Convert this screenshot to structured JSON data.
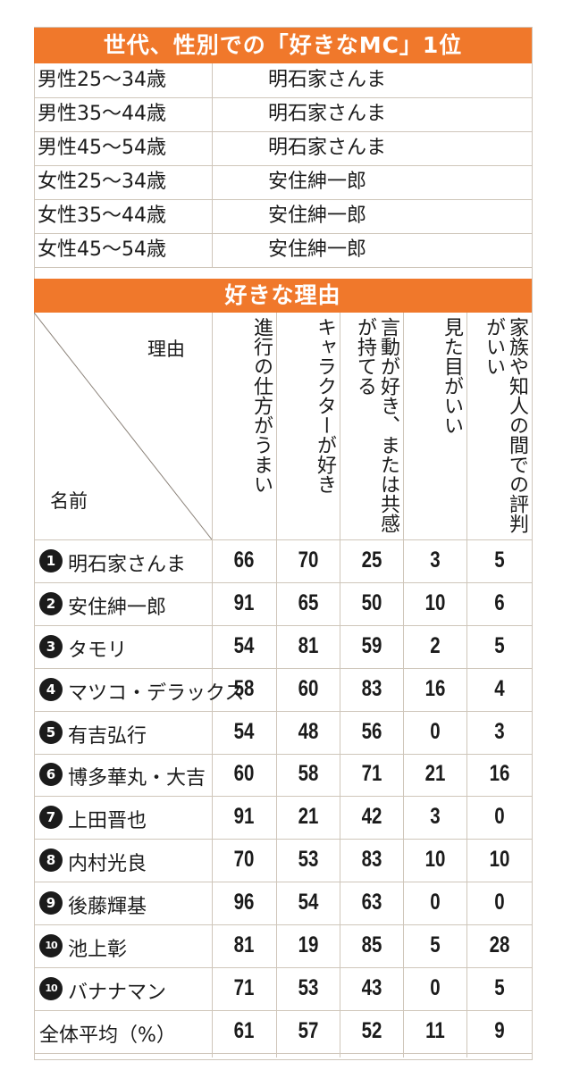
{
  "top_table": {
    "title": "世代、性別での「好きなMC」1位",
    "rows": [
      {
        "group": "男性25～34歳",
        "name": "明石家さんま"
      },
      {
        "group": "男性35～44歳",
        "name": "明石家さんま"
      },
      {
        "group": "男性45～54歳",
        "name": "明石家さんま"
      },
      {
        "group": "女性25～34歳",
        "name": "安住紳一郎"
      },
      {
        "group": "女性35～44歳",
        "name": "安住紳一郎"
      },
      {
        "group": "女性45～54歳",
        "name": "安住紳一郎"
      }
    ]
  },
  "reasons_table": {
    "title": "好きな理由",
    "corner_top": "理由",
    "corner_bottom": "名前",
    "columns": [
      "進行の仕方がうまい",
      "キャラクターが好き",
      "言動が好き、または共感が持てる",
      "見た目がいい",
      "家族や知人の間での評判がいい"
    ],
    "rows": [
      {
        "rank": "1",
        "name": "明石家さんま",
        "values": [
          "66",
          "70",
          "25",
          "3",
          "5"
        ]
      },
      {
        "rank": "2",
        "name": "安住紳一郎",
        "values": [
          "91",
          "65",
          "50",
          "10",
          "6"
        ]
      },
      {
        "rank": "3",
        "name": "タモリ",
        "values": [
          "54",
          "81",
          "59",
          "2",
          "5"
        ]
      },
      {
        "rank": "4",
        "name": "マツコ・デラックス",
        "values": [
          "58",
          "60",
          "83",
          "16",
          "4"
        ]
      },
      {
        "rank": "5",
        "name": "有吉弘行",
        "values": [
          "54",
          "48",
          "56",
          "0",
          "3"
        ]
      },
      {
        "rank": "6",
        "name": "博多華丸・大吉",
        "values": [
          "60",
          "58",
          "71",
          "21",
          "16"
        ]
      },
      {
        "rank": "7",
        "name": "上田晋也",
        "values": [
          "91",
          "21",
          "42",
          "3",
          "0"
        ]
      },
      {
        "rank": "8",
        "name": "内村光良",
        "values": [
          "70",
          "53",
          "83",
          "10",
          "10"
        ]
      },
      {
        "rank": "9",
        "name": "後藤輝基",
        "values": [
          "96",
          "54",
          "63",
          "0",
          "0"
        ]
      },
      {
        "rank": "10",
        "name": "池上彰",
        "values": [
          "81",
          "19",
          "85",
          "5",
          "28"
        ]
      },
      {
        "rank": "10",
        "name": "バナナマン",
        "values": [
          "71",
          "53",
          "43",
          "0",
          "5"
        ]
      }
    ],
    "average": {
      "name": "全体平均（%）",
      "values": [
        "61",
        "57",
        "52",
        "11",
        "9"
      ]
    }
  }
}
